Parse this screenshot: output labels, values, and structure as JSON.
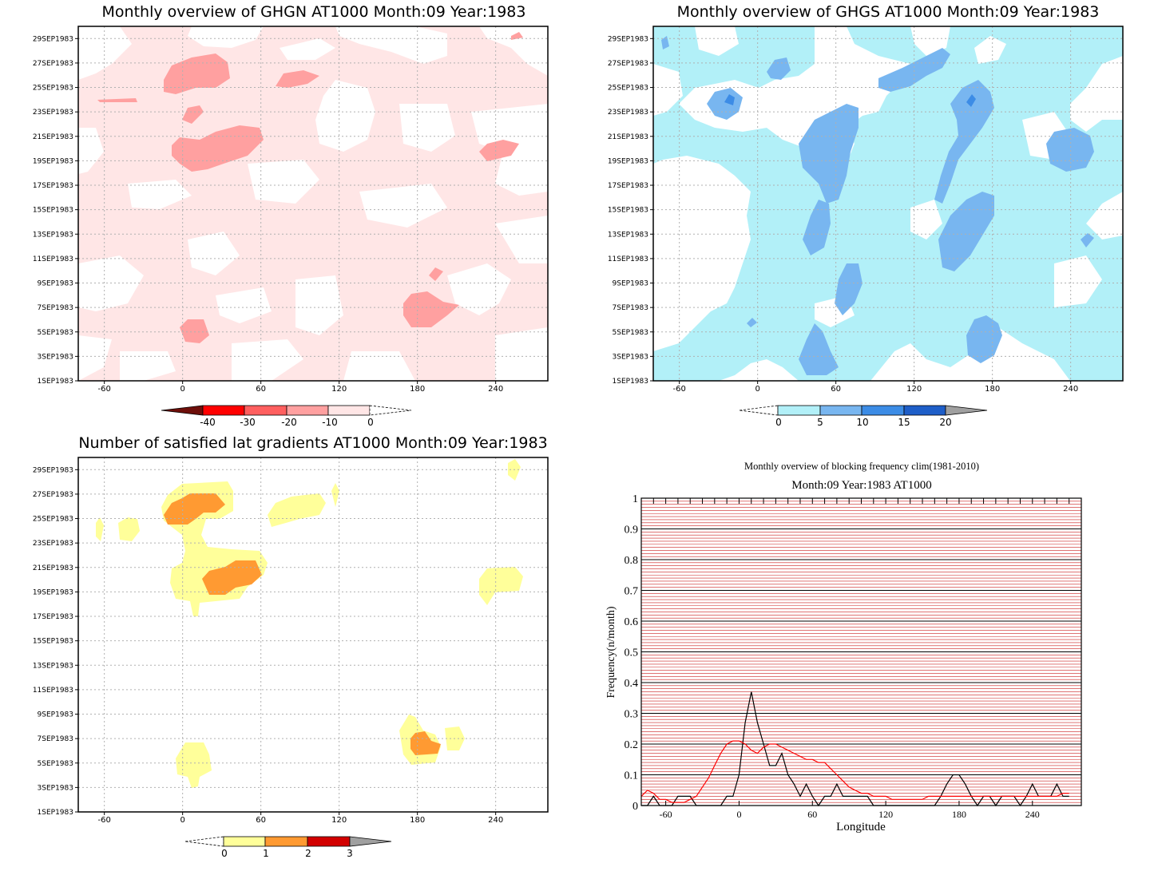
{
  "colors": {
    "frame": "#000000",
    "grid": "#b0b0b0",
    "ghgn": [
      "#6e0f0a",
      "#ff0000",
      "#ff5f5f",
      "#ffa0a0",
      "#ffe6e6"
    ],
    "ghgs": [
      "#b2f0f8",
      "#78b6f0",
      "#3c8ce6",
      "#1e5ec8",
      "#a0a0a0"
    ],
    "sat": [
      "#ffff9a",
      "#ff9a32",
      "#d20000",
      "#a0a0a0"
    ],
    "line_obs": "#000000",
    "line_clim": "#ff0000",
    "hgrid_major": "#000000",
    "hgrid_minor": "#cc2222"
  },
  "date_ticks": [
    "1SEP1983",
    "3SEP1983",
    "5SEP1983",
    "7SEP1983",
    "9SEP1983",
    "11SEP1983",
    "13SEP1983",
    "15SEP1983",
    "17SEP1983",
    "19SEP1983",
    "21SEP1983",
    "23SEP1983",
    "25SEP1983",
    "27SEP1983",
    "29SEP1983"
  ],
  "lon_ticks": [
    "-60",
    "0",
    "60",
    "120",
    "180",
    "240"
  ],
  "panel_ghgn": {
    "title": "Monthly overview of GHGN AT1000 Month:09 Year:1983",
    "colorbar_labels": [
      "-40",
      "-30",
      "-20",
      "-10",
      "0"
    ]
  },
  "panel_ghgs": {
    "title": "Monthly overview of GHGS AT1000 Month:09 Year:1983",
    "colorbar_labels": [
      "0",
      "5",
      "10",
      "15",
      "20"
    ]
  },
  "panel_sat": {
    "title": "Number of satisfied lat gradients AT1000 Month:09 Year:1983",
    "colorbar_labels": [
      "0",
      "1",
      "2",
      "3"
    ]
  },
  "panel_freq": {
    "title": "Monthly overview of blocking frequency clim(1981-2010)",
    "subtitle": "Month:09 Year:1983  AT1000",
    "ylabel": "Frequency(n/month)",
    "xlabel": "Longitude",
    "y_ticks": [
      "0",
      "0.1",
      "0.2",
      "0.3",
      "0.4",
      "0.5",
      "0.6",
      "0.7",
      "0.8",
      "0.9",
      "1"
    ],
    "x_ticks": [
      "-60",
      "0",
      "60",
      "120",
      "180",
      "240"
    ]
  },
  "chart_data": {
    "type": "line",
    "title": "Monthly overview of blocking frequency clim(1981-2010)",
    "subtitle": "Month:09 Year:1983  AT1000",
    "xlabel": "Longitude",
    "ylabel": "Frequency(n/month)",
    "xlim": [
      -80,
      280
    ],
    "ylim": [
      0,
      1
    ],
    "series": [
      {
        "color": "#000000",
        "x": [
          -80,
          -75,
          -70,
          -65,
          -60,
          -55,
          -50,
          -45,
          -40,
          -35,
          -30,
          -25,
          -20,
          -15,
          -10,
          -5,
          0,
          5,
          10,
          15,
          20,
          25,
          30,
          35,
          40,
          45,
          50,
          55,
          60,
          65,
          70,
          75,
          80,
          85,
          90,
          95,
          100,
          105,
          110,
          115,
          120,
          125,
          130,
          135,
          140,
          145,
          150,
          155,
          160,
          165,
          170,
          175,
          180,
          185,
          190,
          195,
          200,
          205,
          210,
          215,
          220,
          225,
          230,
          235,
          240,
          245,
          250,
          255,
          260,
          265,
          270
        ],
        "y": [
          0,
          0,
          0.03,
          0,
          0,
          0,
          0.03,
          0.03,
          0.03,
          0,
          0,
          0,
          0,
          0,
          0.03,
          0.03,
          0.1,
          0.27,
          0.37,
          0.27,
          0.2,
          0.13,
          0.13,
          0.17,
          0.1,
          0.07,
          0.03,
          0.07,
          0.03,
          0,
          0.03,
          0.03,
          0.07,
          0.03,
          0.03,
          0.03,
          0.03,
          0.03,
          0,
          0,
          0,
          0,
          0,
          0,
          0,
          0,
          0,
          0,
          0,
          0.03,
          0.07,
          0.1,
          0.1,
          0.07,
          0.03,
          0,
          0.03,
          0.03,
          0,
          0.03,
          0.03,
          0.03,
          0,
          0.03,
          0.07,
          0.03,
          0.03,
          0.03,
          0.07,
          0.03,
          0.03
        ]
      },
      {
        "color": "#ff0000",
        "x": [
          -80,
          -75,
          -70,
          -65,
          -60,
          -55,
          -50,
          -45,
          -40,
          -35,
          -30,
          -25,
          -20,
          -15,
          -10,
          -5,
          0,
          5,
          10,
          15,
          20,
          25,
          30,
          35,
          40,
          45,
          50,
          55,
          60,
          65,
          70,
          75,
          80,
          85,
          90,
          95,
          100,
          105,
          110,
          115,
          120,
          125,
          130,
          135,
          140,
          145,
          150,
          155,
          160,
          165,
          170,
          175,
          180,
          185,
          190,
          195,
          200,
          205,
          210,
          215,
          220,
          225,
          230,
          235,
          240,
          245,
          250,
          255,
          260,
          265,
          270
        ],
        "y": [
          0.03,
          0.05,
          0.04,
          0.02,
          0.02,
          0.01,
          0.01,
          0.01,
          0.02,
          0.03,
          0.06,
          0.09,
          0.13,
          0.17,
          0.2,
          0.21,
          0.21,
          0.2,
          0.18,
          0.17,
          0.19,
          0.2,
          0.2,
          0.19,
          0.18,
          0.17,
          0.16,
          0.15,
          0.15,
          0.14,
          0.14,
          0.12,
          0.1,
          0.08,
          0.06,
          0.05,
          0.04,
          0.04,
          0.03,
          0.03,
          0.03,
          0.02,
          0.02,
          0.02,
          0.02,
          0.02,
          0.02,
          0.03,
          0.03,
          0.03,
          0.03,
          0.03,
          0.03,
          0.03,
          0.03,
          0.03,
          0.03,
          0.03,
          0.03,
          0.03,
          0.03,
          0.03,
          0.03,
          0.03,
          0.03,
          0.03,
          0.03,
          0.03,
          0.03,
          0.04,
          0.04
        ]
      }
    ]
  }
}
